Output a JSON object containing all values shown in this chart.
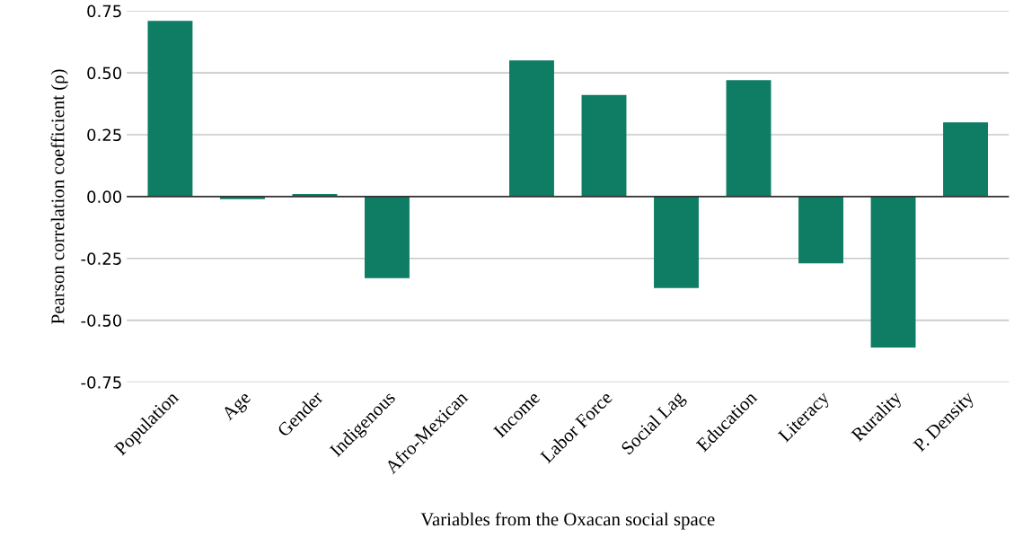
{
  "chart_data": {
    "type": "bar",
    "categories": [
      "Population",
      "Age",
      "Gender",
      "Indigenous",
      "Afro-Mexican",
      "Income",
      "Labor Force",
      "Social Lag",
      "Education",
      "Literacy",
      "Rurality",
      "P. Density"
    ],
    "values": [
      0.71,
      -0.01,
      0.01,
      -0.33,
      0,
      0.55,
      0.41,
      -0.37,
      0.47,
      -0.27,
      -0.61,
      0.3
    ],
    "color": "#0e7d63",
    "xlabel": "Variables from the Oxacan social space",
    "ylabel": "Pearson correlation coefficient (ρ)",
    "ylim": [
      -0.75,
      0.75
    ],
    "yticks": [
      {
        "value": -0.75,
        "label": "-0.75"
      },
      {
        "value": -0.5,
        "label": "-0.50"
      },
      {
        "value": -0.25,
        "label": "-0.25"
      },
      {
        "value": 0,
        "label": "0.00"
      },
      {
        "value": 0.25,
        "label": "0.25"
      },
      {
        "value": 0.5,
        "label": "0.50"
      },
      {
        "value": 0.75,
        "label": "0.75"
      }
    ],
    "grid": "y"
  }
}
